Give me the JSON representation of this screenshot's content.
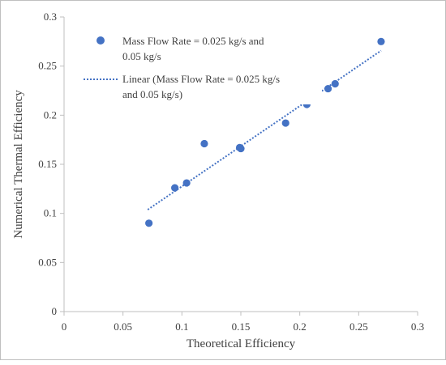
{
  "chart_data": {
    "type": "scatter",
    "xlabel": "Theoretical Efficiency",
    "ylabel": "Numerical Thermal Efficiency",
    "xlim": [
      0,
      0.3
    ],
    "ylim": [
      0,
      0.3
    ],
    "xticks": [
      "0",
      "0.05",
      "0.1",
      "0.15",
      "0.2",
      "0.25",
      "0.3"
    ],
    "yticks": [
      "0",
      "0.05",
      "0.1",
      "0.15",
      "0.2",
      "0.25",
      "0.3"
    ],
    "grid": false,
    "legend_position": "top-left",
    "series": [
      {
        "name": "Mass Flow Rate = 0.025 kg/s and 0.05 kg/s",
        "legend_lines": [
          "Mass Flow Rate = 0.025 kg/s and",
          "0.05 kg/s"
        ],
        "marker": "circle",
        "color": "#4472c4",
        "points": [
          {
            "x": 0.072,
            "y": 0.09
          },
          {
            "x": 0.094,
            "y": 0.126
          },
          {
            "x": 0.104,
            "y": 0.131
          },
          {
            "x": 0.119,
            "y": 0.171
          },
          {
            "x": 0.149,
            "y": 0.167
          },
          {
            "x": 0.15,
            "y": 0.166
          },
          {
            "x": 0.188,
            "y": 0.192
          },
          {
            "x": 0.206,
            "y": 0.211
          },
          {
            "x": 0.224,
            "y": 0.227
          },
          {
            "x": 0.23,
            "y": 0.232
          },
          {
            "x": 0.269,
            "y": 0.275
          }
        ]
      },
      {
        "name": "Linear (Mass Flow Rate = 0.025 kg/s and 0.05 kg/s)",
        "legend_lines": [
          "Linear (Mass Flow Rate = 0.025 kg/s",
          "and 0.05 kg/s)"
        ],
        "type": "trendline",
        "style": "dotted",
        "color": "#4472c4",
        "x_range": [
          0.071,
          0.269
        ],
        "slope": 0.818,
        "intercept": 0.0457
      }
    ]
  }
}
